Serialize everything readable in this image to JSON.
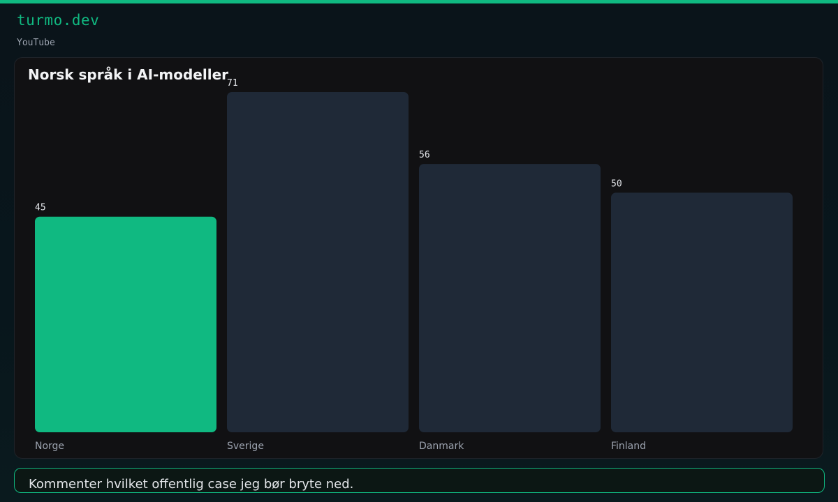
{
  "header": {
    "brand": "turmo.dev",
    "channel": "YouTube"
  },
  "colors": {
    "accent": "#10b981",
    "bar_default": "#1f2937"
  },
  "chart_data": {
    "type": "bar",
    "title": "Norsk språk i AI-modeller",
    "xlabel": "",
    "ylabel": "",
    "categories": [
      "Norge",
      "Sverige",
      "Danmark",
      "Finland"
    ],
    "values": [
      45,
      71,
      56,
      50
    ],
    "highlight": "Norge",
    "ylim": [
      0,
      71
    ],
    "grid": false
  },
  "footer": {
    "text": "Kommenter hvilket offentlig case jeg bør bryte ned."
  }
}
